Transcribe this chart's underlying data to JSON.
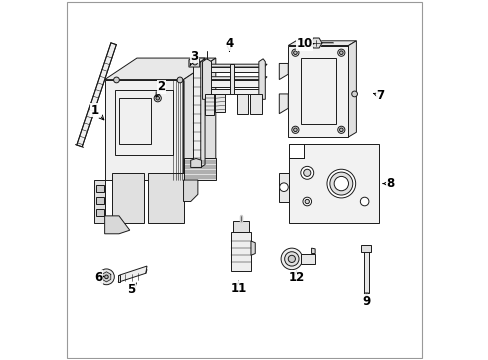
{
  "background_color": "#ffffff",
  "line_color": "#1a1a1a",
  "label_color": "#000000",
  "label_fontsize": 8.5,
  "figsize": [
    4.89,
    3.6
  ],
  "dpi": 100,
  "border_color": "#999999",
  "label_configs": {
    "1": [
      0.082,
      0.695,
      0.115,
      0.66
    ],
    "2": [
      0.268,
      0.76,
      0.252,
      0.73
    ],
    "3": [
      0.36,
      0.845,
      0.348,
      0.818
    ],
    "4": [
      0.458,
      0.88,
      0.458,
      0.858
    ],
    "5": [
      0.183,
      0.195,
      0.2,
      0.215
    ],
    "6": [
      0.093,
      0.228,
      0.11,
      0.232
    ],
    "7": [
      0.88,
      0.735,
      0.858,
      0.742
    ],
    "8": [
      0.908,
      0.49,
      0.885,
      0.49
    ],
    "9": [
      0.84,
      0.162,
      0.84,
      0.182
    ],
    "10": [
      0.668,
      0.88,
      0.695,
      0.88
    ],
    "11": [
      0.483,
      0.198,
      0.483,
      0.218
    ],
    "12": [
      0.645,
      0.228,
      0.645,
      0.248
    ]
  }
}
